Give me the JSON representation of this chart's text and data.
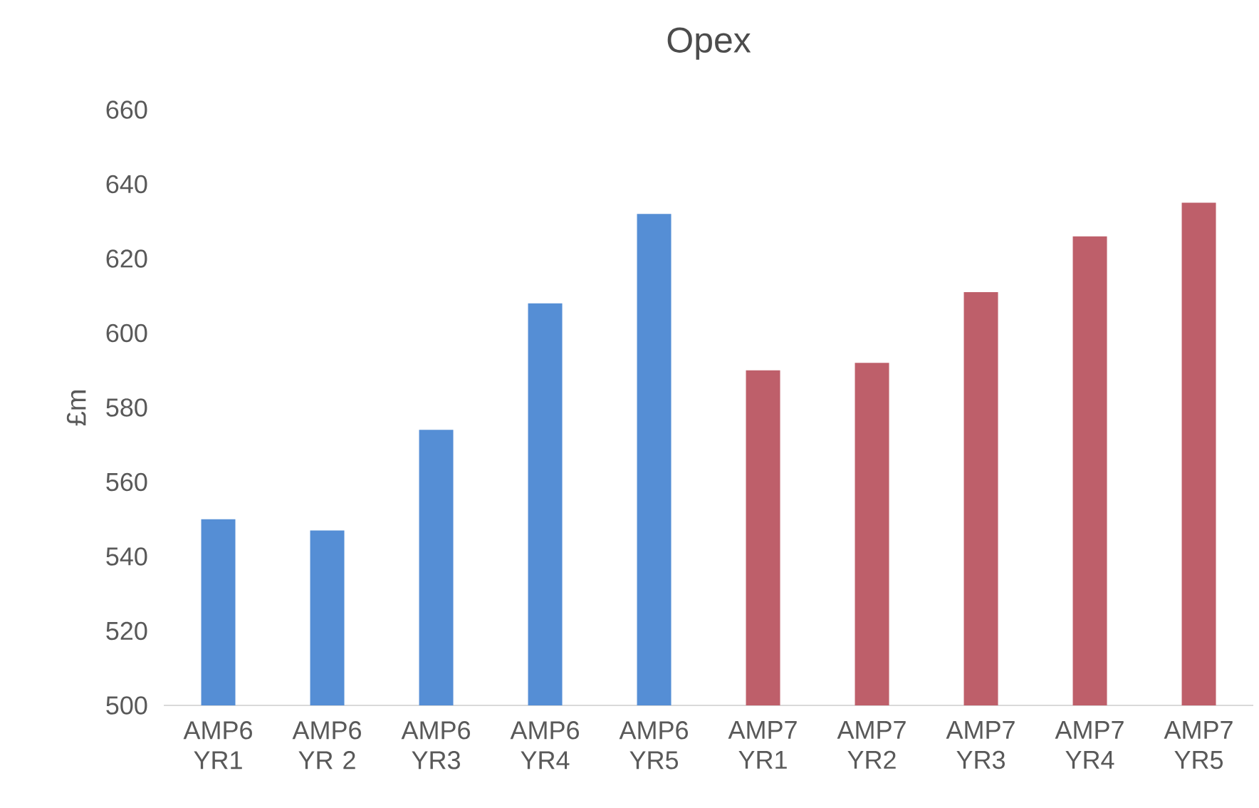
{
  "chart_data": {
    "type": "bar",
    "title": "Opex",
    "ylabel": "£m",
    "categories": [
      "AMP6 YR1",
      "AMP6 YR 2",
      "AMP6 YR3",
      "AMP6 YR4",
      "AMP6 YR5",
      "AMP7 YR1",
      "AMP7 YR2",
      "AMP7 YR3",
      "AMP7 YR4",
      "AMP7 YR5"
    ],
    "values": [
      550,
      547,
      574,
      608,
      632,
      590,
      592,
      611,
      626,
      635
    ],
    "colors": [
      "#558ed5",
      "#558ed5",
      "#558ed5",
      "#558ed5",
      "#558ed5",
      "#be5f6a",
      "#be5f6a",
      "#be5f6a",
      "#be5f6a",
      "#be5f6a"
    ],
    "ylim": [
      500,
      660
    ],
    "yticks": [
      500,
      520,
      540,
      560,
      580,
      600,
      620,
      640,
      660
    ]
  }
}
